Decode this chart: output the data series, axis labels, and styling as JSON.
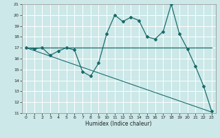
{
  "xlabel": "Humidex (Indice chaleur)",
  "xlim": [
    -0.5,
    23.5
  ],
  "ylim": [
    11,
    21
  ],
  "yticks": [
    11,
    12,
    13,
    14,
    15,
    16,
    17,
    18,
    19,
    20,
    21
  ],
  "xticks": [
    0,
    1,
    2,
    3,
    4,
    5,
    6,
    7,
    8,
    9,
    10,
    11,
    12,
    13,
    14,
    15,
    16,
    17,
    18,
    19,
    20,
    21,
    22,
    23
  ],
  "bg_color": "#cce8e8",
  "grid_color": "#ffffff",
  "line_color": "#1a6b6b",
  "line1_x": [
    0,
    1,
    2,
    3,
    4,
    5,
    6,
    7,
    8,
    9,
    10,
    11,
    12,
    13,
    14,
    15,
    16,
    17,
    18,
    19,
    20,
    21,
    22,
    23
  ],
  "line1_y": [
    17,
    17,
    17,
    17,
    17,
    17,
    17,
    17,
    17,
    17,
    17,
    17,
    17,
    17,
    17,
    17,
    17,
    17,
    17,
    17,
    17,
    17,
    17,
    17
  ],
  "line2_x": [
    0,
    1,
    2,
    3,
    4,
    5,
    6,
    7,
    8,
    9,
    10,
    11,
    12,
    13,
    14,
    15,
    16,
    17,
    18,
    19,
    20,
    21,
    22,
    23
  ],
  "line2_y": [
    17,
    16.9,
    17,
    16.3,
    16.7,
    17,
    16.8,
    14.8,
    14.4,
    15.6,
    18.3,
    20.0,
    19.4,
    19.8,
    19.5,
    18.0,
    17.8,
    18.5,
    21.0,
    18.3,
    16.9,
    15.3,
    13.5,
    11.2
  ],
  "line3_x": [
    0,
    23
  ],
  "line3_y": [
    17,
    11.1
  ]
}
